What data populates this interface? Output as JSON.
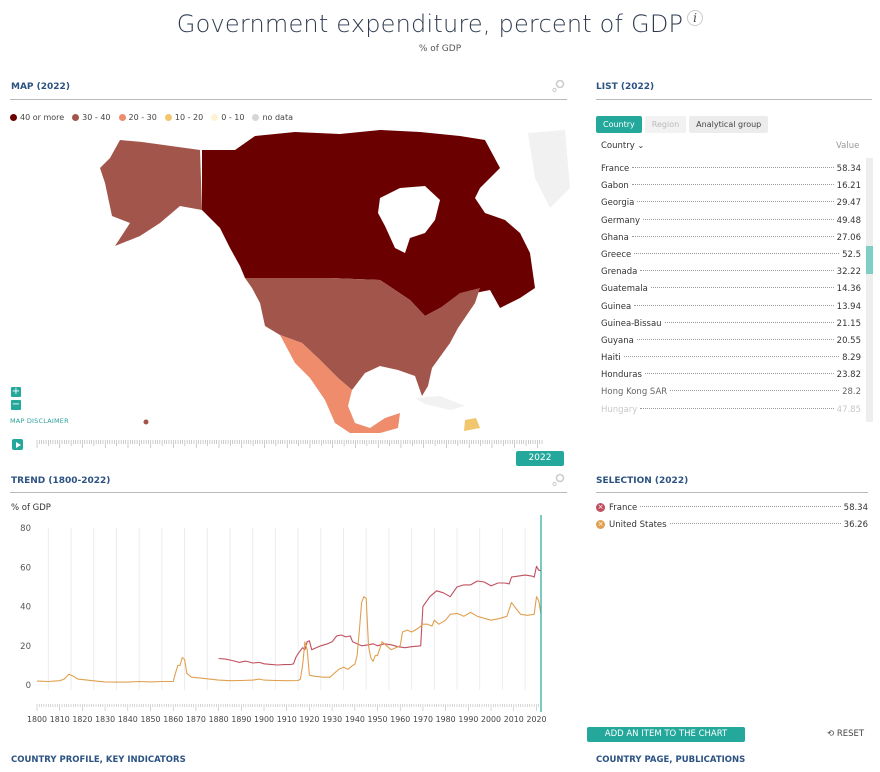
{
  "header": {
    "title": "Government expenditure, percent of GDP",
    "info_icon": "i",
    "subtitle": "% of GDP"
  },
  "map": {
    "heading": "MAP (2022)",
    "legend": [
      {
        "label": "40 or more",
        "color": "#6b0000"
      },
      {
        "label": "30 - 40",
        "color": "#a2564b"
      },
      {
        "label": "20 - 30",
        "color": "#ee8c6c"
      },
      {
        "label": "10 - 20",
        "color": "#f2c66c"
      },
      {
        "label": "0 - 10",
        "color": "#fdf3d2"
      },
      {
        "label": "no data",
        "color": "#d6d6d6"
      }
    ],
    "zoom_in": "+",
    "zoom_out": "−",
    "disclaimer": "MAP DISCLAIMER",
    "timeline_year": "2022"
  },
  "list": {
    "heading": "LIST (2022)",
    "tabs": [
      {
        "label": "Country",
        "active": true
      },
      {
        "label": "Region",
        "active": false
      },
      {
        "label": "Analytical group",
        "active": false
      }
    ],
    "col_country": "Country",
    "col_value": "Value",
    "rows": [
      {
        "name": "France",
        "value": "58.34"
      },
      {
        "name": "Gabon",
        "value": "16.21"
      },
      {
        "name": "Georgia",
        "value": "29.47"
      },
      {
        "name": "Germany",
        "value": "49.48"
      },
      {
        "name": "Ghana",
        "value": "27.06"
      },
      {
        "name": "Greece",
        "value": "52.5"
      },
      {
        "name": "Grenada",
        "value": "32.22"
      },
      {
        "name": "Guatemala",
        "value": "14.36"
      },
      {
        "name": "Guinea",
        "value": "13.94"
      },
      {
        "name": "Guinea-Bissau",
        "value": "21.15"
      },
      {
        "name": "Guyana",
        "value": "20.55"
      },
      {
        "name": "Haiti",
        "value": "8.29"
      },
      {
        "name": "Honduras",
        "value": "23.82"
      },
      {
        "name": "Hong Kong SAR",
        "value": "28.2"
      },
      {
        "name": "Hungary",
        "value": "47.85"
      }
    ]
  },
  "selection": {
    "heading": "SELECTION (2022)",
    "items": [
      {
        "name": "France",
        "value": "58.34",
        "color": "#c0505f"
      },
      {
        "name": "United States",
        "value": "36.26",
        "color": "#e0a050"
      }
    ]
  },
  "actions": {
    "add_item": "ADD AN ITEM TO THE CHART",
    "reset": "RESET"
  },
  "footer": {
    "left": "COUNTRY PROFILE, KEY INDICATORS",
    "right": "COUNTRY PAGE, PUBLICATIONS"
  },
  "chart_data": {
    "type": "line",
    "title": "TREND (1800-2022)",
    "ylabel": "% of GDP",
    "xlabel": "",
    "xlim": [
      1800,
      2022
    ],
    "ylim": [
      0,
      80
    ],
    "yticks": [
      0,
      20,
      40,
      60,
      80
    ],
    "xticks": [
      1800,
      1810,
      1820,
      1830,
      1840,
      1850,
      1860,
      1870,
      1880,
      1890,
      1900,
      1910,
      1920,
      1930,
      1940,
      1950,
      1960,
      1970,
      1980,
      1990,
      2000,
      2010,
      2020
    ],
    "current_year": "2022",
    "grid": "vertical",
    "series": [
      {
        "name": "France",
        "color": "#c0505f",
        "points": [
          [
            1880,
            13.5
          ],
          [
            1883,
            13.2
          ],
          [
            1886,
            12.5
          ],
          [
            1889,
            11.5
          ],
          [
            1892,
            12.2
          ],
          [
            1895,
            11.2
          ],
          [
            1898,
            11.5
          ],
          [
            1900,
            10.8
          ],
          [
            1903,
            10.5
          ],
          [
            1906,
            10.2
          ],
          [
            1909,
            10.4
          ],
          [
            1912,
            10.5
          ],
          [
            1913,
            10.8
          ],
          [
            1914,
            14
          ],
          [
            1915,
            16
          ],
          [
            1917,
            19
          ],
          [
            1918,
            18
          ],
          [
            1919,
            22
          ],
          [
            1920,
            22.5
          ],
          [
            1921,
            18
          ],
          [
            1923,
            19
          ],
          [
            1925,
            20
          ],
          [
            1928,
            21
          ],
          [
            1930,
            22
          ],
          [
            1932,
            25
          ],
          [
            1934,
            25.5
          ],
          [
            1936,
            24.5
          ],
          [
            1938,
            25
          ],
          [
            1939,
            22
          ],
          [
            1941,
            21
          ],
          [
            1943,
            20
          ],
          [
            1946,
            20.5
          ],
          [
            1948,
            21
          ],
          [
            1950,
            20
          ],
          [
            1953,
            21
          ],
          [
            1956,
            20.5
          ],
          [
            1959,
            19.5
          ],
          [
            1962,
            19
          ],
          [
            1965,
            19.5
          ],
          [
            1968,
            19.8
          ],
          [
            1969,
            20
          ],
          [
            1970,
            40
          ],
          [
            1973,
            45
          ],
          [
            1976,
            48
          ],
          [
            1979,
            47
          ],
          [
            1982,
            45
          ],
          [
            1985,
            50
          ],
          [
            1988,
            51
          ],
          [
            1991,
            51
          ],
          [
            1994,
            53
          ],
          [
            1997,
            52.5
          ],
          [
            2000,
            50.5
          ],
          [
            2003,
            52
          ],
          [
            2006,
            52
          ],
          [
            2008,
            51.5
          ],
          [
            2009,
            55
          ],
          [
            2012,
            55.5
          ],
          [
            2015,
            56
          ],
          [
            2018,
            55.5
          ],
          [
            2019,
            55
          ],
          [
            2020,
            60.5
          ],
          [
            2021,
            58.5
          ],
          [
            2022,
            58.3
          ]
        ]
      },
      {
        "name": "United States",
        "color": "#e0a050",
        "points": [
          [
            1800,
            2
          ],
          [
            1805,
            1.8
          ],
          [
            1810,
            2.2
          ],
          [
            1812,
            3
          ],
          [
            1814,
            5.5
          ],
          [
            1816,
            4.5
          ],
          [
            1818,
            3
          ],
          [
            1822,
            2.5
          ],
          [
            1826,
            2
          ],
          [
            1830,
            1.6
          ],
          [
            1835,
            1.5
          ],
          [
            1840,
            1.5
          ],
          [
            1845,
            1.8
          ],
          [
            1850,
            1.6
          ],
          [
            1855,
            1.8
          ],
          [
            1860,
            1.8
          ],
          [
            1861,
            6
          ],
          [
            1862,
            10
          ],
          [
            1863,
            10
          ],
          [
            1864,
            14
          ],
          [
            1865,
            13
          ],
          [
            1866,
            6
          ],
          [
            1868,
            4
          ],
          [
            1872,
            3.5
          ],
          [
            1876,
            3
          ],
          [
            1880,
            2.5
          ],
          [
            1885,
            2.2
          ],
          [
            1890,
            2.3
          ],
          [
            1895,
            2.5
          ],
          [
            1898,
            3
          ],
          [
            1900,
            2.5
          ],
          [
            1905,
            2.3
          ],
          [
            1910,
            2.2
          ],
          [
            1915,
            2.3
          ],
          [
            1916,
            3
          ],
          [
            1917,
            10
          ],
          [
            1918,
            22
          ],
          [
            1919,
            18
          ],
          [
            1920,
            5
          ],
          [
            1922,
            4.5
          ],
          [
            1926,
            4
          ],
          [
            1929,
            4
          ],
          [
            1931,
            6
          ],
          [
            1933,
            8
          ],
          [
            1935,
            9
          ],
          [
            1937,
            8
          ],
          [
            1939,
            10
          ],
          [
            1940,
            10.5
          ],
          [
            1941,
            15
          ],
          [
            1942,
            28
          ],
          [
            1943,
            42
          ],
          [
            1944,
            45
          ],
          [
            1945,
            44
          ],
          [
            1946,
            20
          ],
          [
            1947,
            14
          ],
          [
            1948,
            12
          ],
          [
            1949,
            15
          ],
          [
            1950,
            15
          ],
          [
            1952,
            22
          ],
          [
            1954,
            20
          ],
          [
            1956,
            18
          ],
          [
            1958,
            19
          ],
          [
            1960,
            20
          ],
          [
            1961,
            27
          ],
          [
            1963,
            28
          ],
          [
            1965,
            27
          ],
          [
            1968,
            29
          ],
          [
            1970,
            31
          ],
          [
            1972,
            31
          ],
          [
            1974,
            30
          ],
          [
            1975,
            33
          ],
          [
            1977,
            31
          ],
          [
            1980,
            33
          ],
          [
            1982,
            36
          ],
          [
            1985,
            36.5
          ],
          [
            1988,
            35
          ],
          [
            1991,
            37
          ],
          [
            1994,
            35
          ],
          [
            1997,
            34
          ],
          [
            2000,
            33
          ],
          [
            2002,
            33.5
          ],
          [
            2004,
            34
          ],
          [
            2007,
            35
          ],
          [
            2009,
            42
          ],
          [
            2011,
            39
          ],
          [
            2013,
            36
          ],
          [
            2016,
            35.5
          ],
          [
            2019,
            36
          ],
          [
            2020,
            45
          ],
          [
            2021,
            43
          ],
          [
            2022,
            36.3
          ]
        ]
      }
    ]
  }
}
